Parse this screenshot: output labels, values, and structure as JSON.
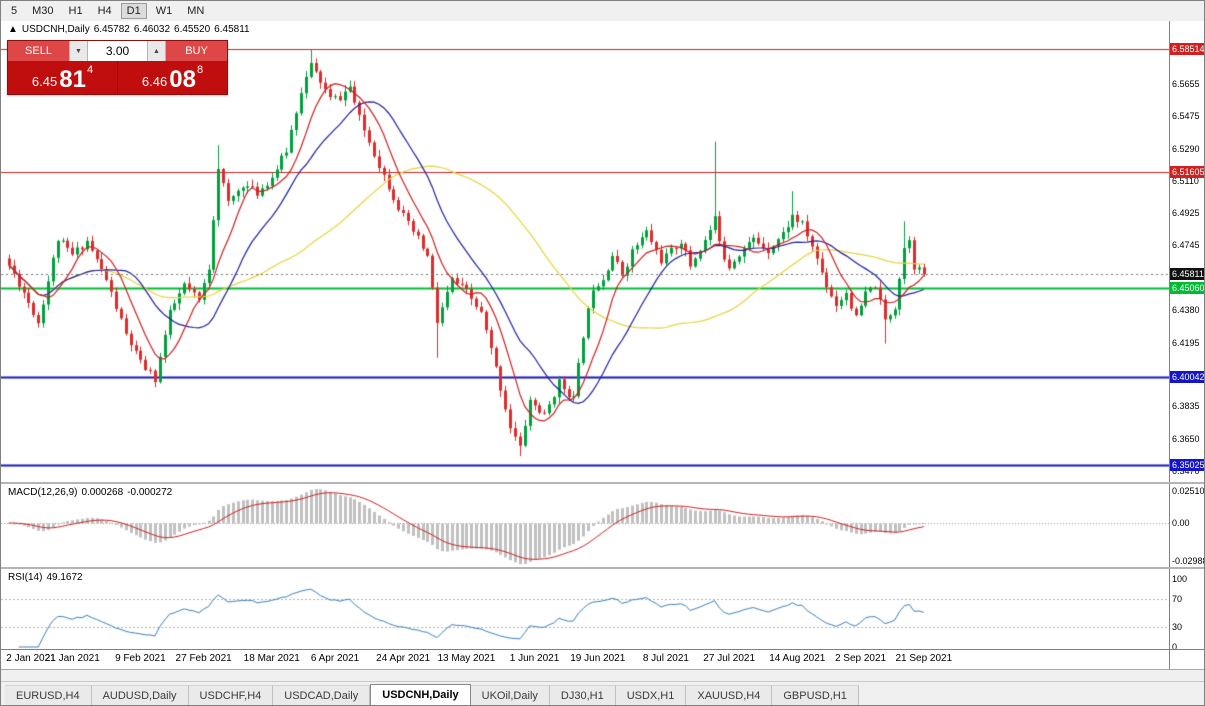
{
  "toolbar": {
    "timeframes": [
      "5",
      "M30",
      "H1",
      "H4",
      "D1",
      "W1",
      "MN"
    ],
    "active": "D1"
  },
  "chart_header": {
    "marker": "▲",
    "symbol": "USDCNH,Daily",
    "open": "6.45782",
    "high": "6.46032",
    "low": "6.45520",
    "close": "6.45811"
  },
  "trade_panel": {
    "sell_label": "SELL",
    "buy_label": "BUY",
    "volume": "3.00",
    "spinner_down_icon": "▼",
    "spinner_up_icon": "▲",
    "sell_price": {
      "big": "6.45",
      "pips": "81",
      "sup": "4"
    },
    "buy_price": {
      "big": "6.46",
      "pips": "08",
      "sup": "8"
    }
  },
  "colors": {
    "candle_up": "#00a03c",
    "candle_down": "#dd2c2c",
    "ma_fast": "#cc2020",
    "ma_mid": "#2020a0",
    "ma_slow": "#ead23c",
    "resistance": "#d02020",
    "support_green": "#00bb33",
    "support_blue": "#1515c8",
    "current_price_label": "#111111",
    "macd_hist": "#c0c0c0",
    "macd_signal": "#cc2222",
    "rsi_line": "#3a7ebf"
  },
  "price_axis": {
    "ticks": [
      {
        "label": "6.5655",
        "value": 6.5655
      },
      {
        "label": "6.5475",
        "value": 6.5475
      },
      {
        "label": "6.5290",
        "value": 6.529
      },
      {
        "label": "6.5110",
        "value": 6.511
      },
      {
        "label": "6.4925",
        "value": 6.4925
      },
      {
        "label": "6.4745",
        "value": 6.4745
      },
      {
        "label": "6.4380",
        "value": 6.438
      },
      {
        "label": "6.4195",
        "value": 6.4195
      },
      {
        "label": "6.3835",
        "value": 6.3835
      },
      {
        "label": "6.3650",
        "value": 6.365
      },
      {
        "label": "6.3470",
        "value": 6.347
      }
    ]
  },
  "hlines": [
    {
      "label": "6.58514",
      "value": 6.58514,
      "color": "#d02020",
      "width": 1
    },
    {
      "label": "6.51605",
      "value": 6.51605,
      "color": "#d02020",
      "width": 1
    },
    {
      "label": "6.45060",
      "value": 6.4506,
      "color": "#00bb33",
      "width": 2
    },
    {
      "label": "6.40042",
      "value": 6.40042,
      "color": "#1515c8",
      "width": 2
    },
    {
      "label": "6.35025",
      "value": 6.35025,
      "color": "#1515c8",
      "width": 2
    }
  ],
  "current_price": {
    "label": "6.45811",
    "value": 6.45811
  },
  "chart_data": {
    "type": "candlestick",
    "title": "USDCNH,Daily",
    "price_min": 6.342,
    "price_max": 6.6,
    "num_candles": 189,
    "close_anchors": [
      [
        0,
        6.463
      ],
      [
        3,
        6.448
      ],
      [
        6,
        6.431
      ],
      [
        10,
        6.478
      ],
      [
        13,
        6.469
      ],
      [
        16,
        6.477
      ],
      [
        20,
        6.455
      ],
      [
        24,
        6.424
      ],
      [
        27,
        6.408
      ],
      [
        30,
        6.399
      ],
      [
        33,
        6.436
      ],
      [
        36,
        6.452
      ],
      [
        39,
        6.443
      ],
      [
        41,
        6.462
      ],
      [
        43,
        6.519
      ],
      [
        45,
        6.498
      ],
      [
        48,
        6.509
      ],
      [
        51,
        6.504
      ],
      [
        54,
        6.513
      ],
      [
        57,
        6.528
      ],
      [
        60,
        6.562
      ],
      [
        62,
        6.576
      ],
      [
        64,
        6.567
      ],
      [
        66,
        6.557
      ],
      [
        68,
        6.558
      ],
      [
        70,
        6.564
      ],
      [
        72,
        6.546
      ],
      [
        76,
        6.52
      ],
      [
        80,
        6.496
      ],
      [
        82,
        6.486
      ],
      [
        84,
        6.478
      ],
      [
        86,
        6.468
      ],
      [
        88,
        6.431
      ],
      [
        91,
        6.455
      ],
      [
        94,
        6.448
      ],
      [
        97,
        6.436
      ],
      [
        100,
        6.405
      ],
      [
        103,
        6.372
      ],
      [
        105,
        6.36
      ],
      [
        107,
        6.387
      ],
      [
        110,
        6.378
      ],
      [
        113,
        6.397
      ],
      [
        116,
        6.388
      ],
      [
        118,
        6.424
      ],
      [
        120,
        6.451
      ],
      [
        122,
        6.456
      ],
      [
        124,
        6.469
      ],
      [
        126,
        6.458
      ],
      [
        128,
        6.471
      ],
      [
        131,
        6.482
      ],
      [
        134,
        6.466
      ],
      [
        136,
        6.471
      ],
      [
        138,
        6.477
      ],
      [
        140,
        6.463
      ],
      [
        143,
        6.477
      ],
      [
        145,
        6.489
      ],
      [
        147,
        6.468
      ],
      [
        148,
        6.463
      ],
      [
        150,
        6.47
      ],
      [
        153,
        6.478
      ],
      [
        156,
        6.472
      ],
      [
        159,
        6.481
      ],
      [
        161,
        6.491
      ],
      [
        163,
        6.486
      ],
      [
        165,
        6.474
      ],
      [
        168,
        6.452
      ],
      [
        170,
        6.441
      ],
      [
        172,
        6.448
      ],
      [
        174,
        6.433
      ],
      [
        176,
        6.447
      ],
      [
        178,
        6.452
      ],
      [
        180,
        6.432
      ],
      [
        182,
        6.44
      ],
      [
        184,
        6.473
      ],
      [
        185,
        6.479
      ],
      [
        186,
        6.463
      ],
      [
        188,
        6.45811
      ]
    ],
    "spikes": [
      {
        "i": 30,
        "low": 6.3965
      },
      {
        "i": 43,
        "high": 6.531
      },
      {
        "i": 62,
        "high": 6.5851
      },
      {
        "i": 63,
        "high": 6.58
      },
      {
        "i": 88,
        "low": 6.411
      },
      {
        "i": 105,
        "low": 6.3555
      },
      {
        "i": 145,
        "high": 6.533
      },
      {
        "i": 161,
        "high": 6.505
      },
      {
        "i": 180,
        "low": 6.419
      },
      {
        "i": 184,
        "high": 6.488
      }
    ],
    "moving_averages": [
      {
        "period": 48,
        "color": "#ead23c"
      },
      {
        "period": 18,
        "color": "#2020a0"
      },
      {
        "period": 8,
        "color": "#cc2020"
      }
    ],
    "dates": [
      "2 Jan 2021",
      "21 Jan 2021",
      "9 Feb 2021",
      "27 Feb 2021",
      "18 Mar 2021",
      "6 Apr 2021",
      "24 Apr 2021",
      "13 May 2021",
      "1 Jun 2021",
      "19 Jun 2021",
      "8 Jul 2021",
      "27 Jul 2021",
      "14 Aug 2021",
      "2 Sep 2021",
      "21 Sep 2021"
    ],
    "date_indices": [
      0,
      13,
      27,
      40,
      54,
      67,
      81,
      94,
      108,
      121,
      135,
      148,
      162,
      175,
      188
    ],
    "macd": {
      "label": "MACD(12,26,9)",
      "main": "0.000268",
      "signal": "-0.000272",
      "fast": 12,
      "slow": 26,
      "signal_period": 9,
      "axis": [
        {
          "label": "0.02510",
          "value": 0.0251
        },
        {
          "label": "0.00",
          "value": 0
        },
        {
          "label": "-0.02988",
          "value": -0.02988
        }
      ],
      "vmax": 0.0306,
      "vmin": -0.0346
    },
    "rsi": {
      "label": "RSI(14)",
      "value": "49.1672",
      "period": 14,
      "levels": [
        70,
        30
      ],
      "axis": [
        {
          "label": "100",
          "value": 100
        },
        {
          "label": "70",
          "value": 70
        },
        {
          "label": "30",
          "value": 30
        },
        {
          "label": "0",
          "value": 0
        }
      ]
    }
  },
  "tabs": {
    "items": [
      "EURUSD,H4",
      "AUDUSD,Daily",
      "USDCHF,H4",
      "USDCAD,Daily",
      "USDCNH,Daily",
      "UKOil,Daily",
      "DJ30,H1",
      "USDX,H1",
      "XAUUSD,H4",
      "GBPUSD,H1"
    ],
    "active": "USDCNH,Daily"
  }
}
